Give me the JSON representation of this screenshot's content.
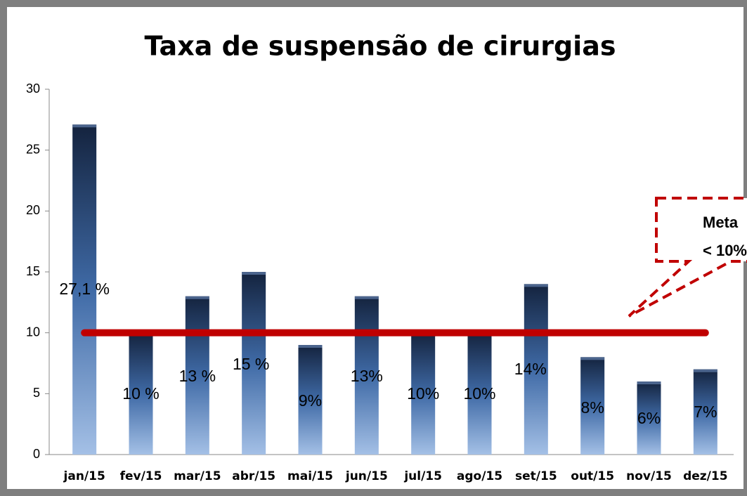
{
  "chart_data": {
    "type": "bar",
    "title": "Taxa de suspensão de cirurgias",
    "categories": [
      "jan/15",
      "fev/15",
      "mar/15",
      "abr/15",
      "mai/15",
      "jun/15",
      "jul/15",
      "ago/15",
      "set/15",
      "out/15",
      "nov/15",
      "dez/15"
    ],
    "values": [
      27.1,
      10,
      13,
      15,
      9,
      13,
      10,
      10,
      14,
      8,
      6,
      7
    ],
    "value_labels": [
      "27,1 %",
      "10 %",
      "13 %",
      "15 %",
      "9%",
      "13%",
      "10%",
      "10%",
      "14%",
      "8%",
      "6%",
      "7%"
    ],
    "ylim": [
      0,
      30
    ],
    "yticks": [
      0,
      5,
      10,
      15,
      20,
      25,
      30
    ],
    "target": 10,
    "target_color": "#c00000",
    "annotation": [
      "Meta",
      "< 10%"
    ]
  }
}
